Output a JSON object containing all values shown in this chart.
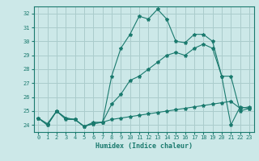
{
  "xlabel": "Humidex (Indice chaleur)",
  "background_color": "#cce8e8",
  "grid_color": "#aacccc",
  "line_color": "#1a7a6e",
  "xlim": [
    -0.5,
    23.5
  ],
  "ylim": [
    23.5,
    32.5
  ],
  "xticks": [
    0,
    1,
    2,
    3,
    4,
    5,
    6,
    7,
    8,
    9,
    10,
    11,
    12,
    13,
    14,
    15,
    16,
    17,
    18,
    19,
    20,
    21,
    22,
    23
  ],
  "yticks": [
    24,
    25,
    26,
    27,
    28,
    29,
    30,
    31,
    32
  ],
  "line1": [
    24.5,
    24.0,
    25.0,
    24.4,
    24.4,
    23.9,
    24.1,
    24.2,
    27.5,
    29.5,
    30.5,
    31.8,
    31.6,
    32.3,
    31.6,
    30.0,
    29.9,
    30.5,
    30.5,
    30.0,
    27.5,
    24.0,
    25.3,
    25.2
  ],
  "line2": [
    24.5,
    24.0,
    25.0,
    24.5,
    24.4,
    23.9,
    24.1,
    24.2,
    24.4,
    24.5,
    24.6,
    24.7,
    24.8,
    24.9,
    25.0,
    25.1,
    25.2,
    25.3,
    25.4,
    25.5,
    25.6,
    25.7,
    25.2,
    25.3
  ],
  "line3": [
    24.5,
    24.1,
    25.0,
    24.5,
    24.4,
    23.9,
    24.2,
    24.2,
    25.5,
    26.2,
    27.2,
    27.5,
    28.0,
    28.5,
    29.0,
    29.2,
    29.0,
    29.5,
    29.8,
    29.5,
    27.5,
    27.5,
    25.0,
    25.2
  ]
}
